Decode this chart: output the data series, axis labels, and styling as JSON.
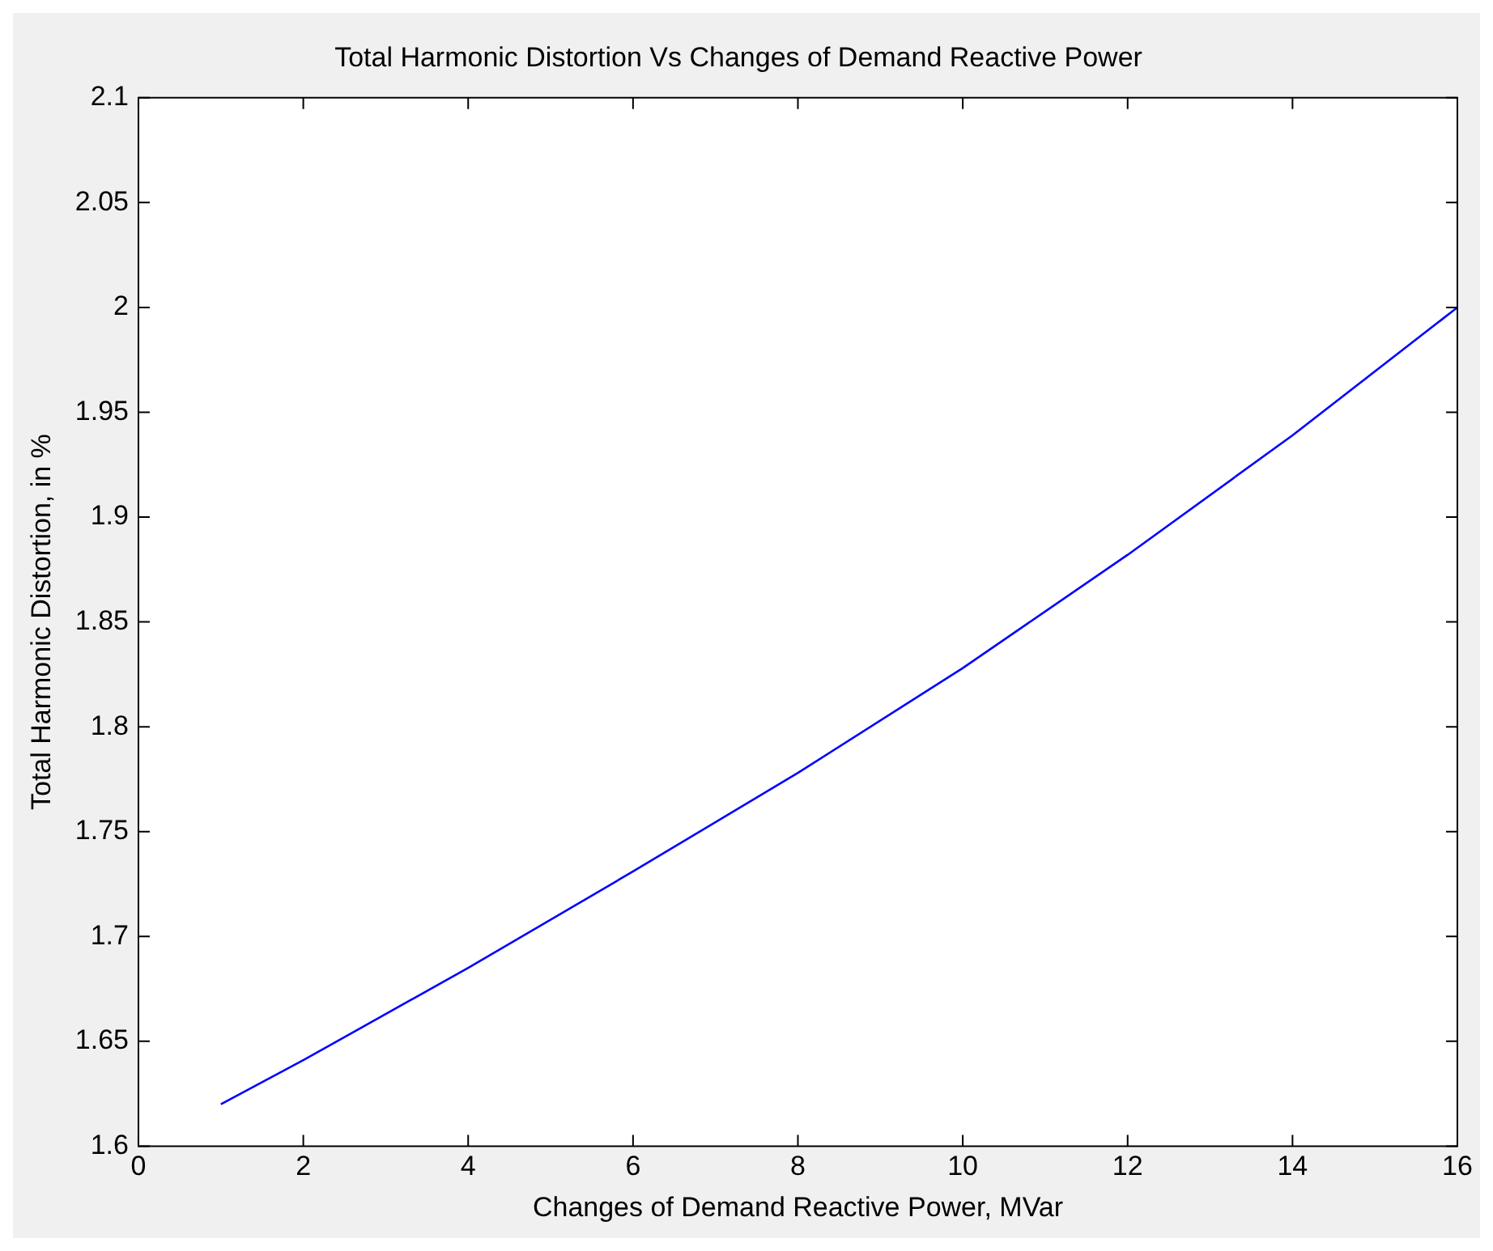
{
  "chart_data": {
    "type": "line",
    "title": "Total Harmonic Distortion Vs Changes of Demand Reactive Power",
    "xlabel": "Changes of Demand Reactive Power, MVar",
    "ylabel": "Total Harmonic Distortion, in %",
    "x": [
      1,
      2,
      4,
      6,
      8,
      10,
      12,
      14,
      16
    ],
    "series": [
      {
        "color": "#0000ff",
        "values": [
          1.62,
          1.641,
          1.685,
          1.731,
          1.778,
          1.828,
          1.882,
          1.939,
          2.0
        ]
      }
    ],
    "xlim": [
      0,
      16
    ],
    "xticks": [
      0,
      2,
      4,
      6,
      8,
      10,
      12,
      14,
      16
    ],
    "ylim": [
      1.6,
      2.1
    ],
    "yticks": [
      1.6,
      1.65,
      1.7,
      1.75,
      1.8,
      1.85,
      1.9,
      1.95,
      2,
      2.05,
      2.1
    ],
    "grid": false,
    "legend": false,
    "marker": "none",
    "line_style": "solid"
  }
}
